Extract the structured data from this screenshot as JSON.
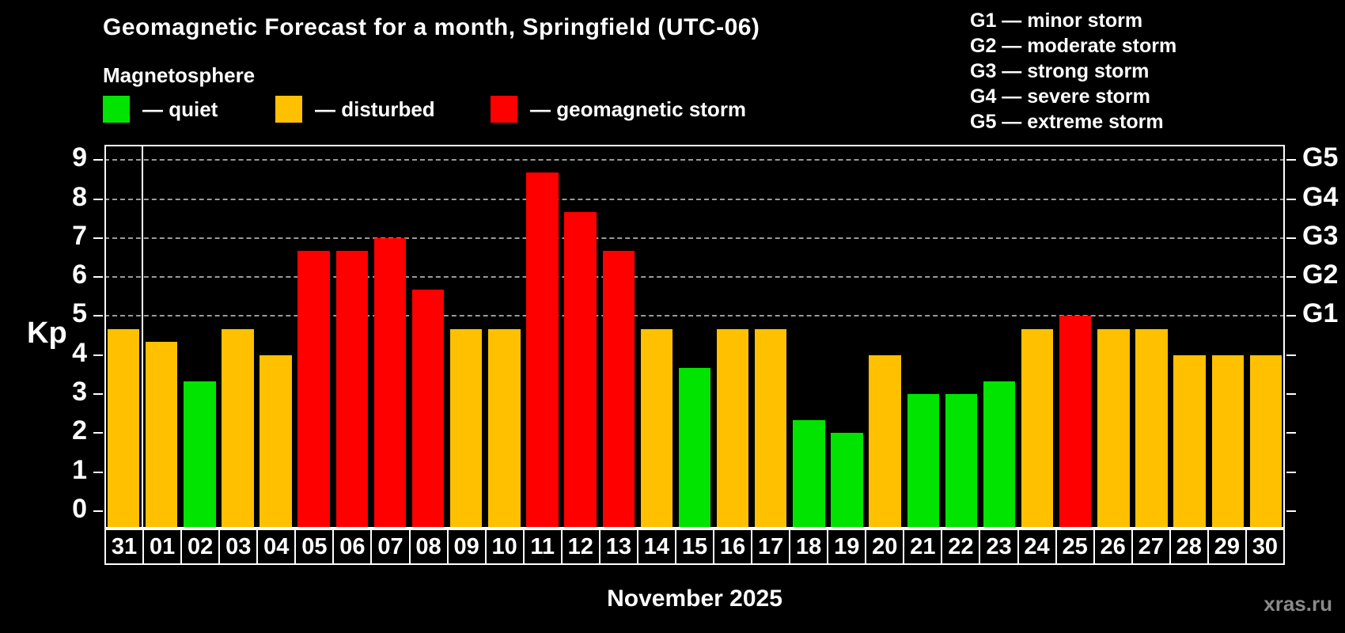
{
  "page": {
    "background": "#000000",
    "credit": "xras.ru"
  },
  "header": {
    "title": "Geomagnetic Forecast for a month, Springfield (UTC-06)",
    "subtitle": "Magnetosphere",
    "legend": [
      {
        "status": "quiet",
        "label": "— quiet"
      },
      {
        "status": "disturbed",
        "label": "— disturbed"
      },
      {
        "status": "storm",
        "label": "— geomagnetic storm"
      }
    ],
    "g_scale_legend": [
      "G1 — minor storm",
      "G2 — moderate storm",
      "G3 — strong storm",
      "G4 — severe storm",
      "G5 — extreme storm"
    ]
  },
  "chart_data": {
    "type": "bar",
    "title": "Geomagnetic Forecast for a month, Springfield (UTC-06)",
    "subtitle": "Magnetosphere",
    "ylabel": "Kp",
    "xlabel": "November 2025",
    "ylim": [
      0,
      9
    ],
    "yticks": [
      0,
      1,
      2,
      3,
      4,
      5,
      6,
      7,
      8,
      9
    ],
    "gridlines_at": [
      5,
      6,
      7,
      8,
      9
    ],
    "grid": "dashed horizontal at storm levels only",
    "legend_position": "top",
    "right_axis_labels": [
      {
        "kp": 5,
        "label": "G1"
      },
      {
        "kp": 6,
        "label": "G2"
      },
      {
        "kp": 7,
        "label": "G3"
      },
      {
        "kp": 8,
        "label": "G4"
      },
      {
        "kp": 9,
        "label": "G5"
      }
    ],
    "colors": {
      "quiet": "#00e400",
      "disturbed": "#ffc000",
      "storm": "#ff0000"
    },
    "month_separator_after_index": 0,
    "bars": [
      {
        "day": "31",
        "kp": 4.67,
        "status": "disturbed"
      },
      {
        "day": "01",
        "kp": 4.33,
        "status": "disturbed"
      },
      {
        "day": "02",
        "kp": 3.33,
        "status": "quiet"
      },
      {
        "day": "03",
        "kp": 4.67,
        "status": "disturbed"
      },
      {
        "day": "04",
        "kp": 4.0,
        "status": "disturbed"
      },
      {
        "day": "05",
        "kp": 6.67,
        "status": "storm"
      },
      {
        "day": "06",
        "kp": 6.67,
        "status": "storm"
      },
      {
        "day": "07",
        "kp": 7.0,
        "status": "storm"
      },
      {
        "day": "08",
        "kp": 5.67,
        "status": "storm"
      },
      {
        "day": "09",
        "kp": 4.67,
        "status": "disturbed"
      },
      {
        "day": "10",
        "kp": 4.67,
        "status": "disturbed"
      },
      {
        "day": "11",
        "kp": 8.67,
        "status": "storm"
      },
      {
        "day": "12",
        "kp": 7.67,
        "status": "storm"
      },
      {
        "day": "13",
        "kp": 6.67,
        "status": "storm"
      },
      {
        "day": "14",
        "kp": 4.67,
        "status": "disturbed"
      },
      {
        "day": "15",
        "kp": 3.67,
        "status": "quiet"
      },
      {
        "day": "16",
        "kp": 4.67,
        "status": "disturbed"
      },
      {
        "day": "17",
        "kp": 4.67,
        "status": "disturbed"
      },
      {
        "day": "18",
        "kp": 2.33,
        "status": "quiet"
      },
      {
        "day": "19",
        "kp": 2.0,
        "status": "quiet"
      },
      {
        "day": "20",
        "kp": 4.0,
        "status": "disturbed"
      },
      {
        "day": "21",
        "kp": 3.0,
        "status": "quiet"
      },
      {
        "day": "22",
        "kp": 3.0,
        "status": "quiet"
      },
      {
        "day": "23",
        "kp": 3.33,
        "status": "quiet"
      },
      {
        "day": "24",
        "kp": 4.67,
        "status": "disturbed"
      },
      {
        "day": "25",
        "kp": 5.0,
        "status": "storm"
      },
      {
        "day": "26",
        "kp": 4.67,
        "status": "disturbed"
      },
      {
        "day": "27",
        "kp": 4.67,
        "status": "disturbed"
      },
      {
        "day": "28",
        "kp": 4.0,
        "status": "disturbed"
      },
      {
        "day": "29",
        "kp": 4.0,
        "status": "disturbed"
      },
      {
        "day": "30",
        "kp": 4.0,
        "status": "disturbed"
      }
    ]
  }
}
